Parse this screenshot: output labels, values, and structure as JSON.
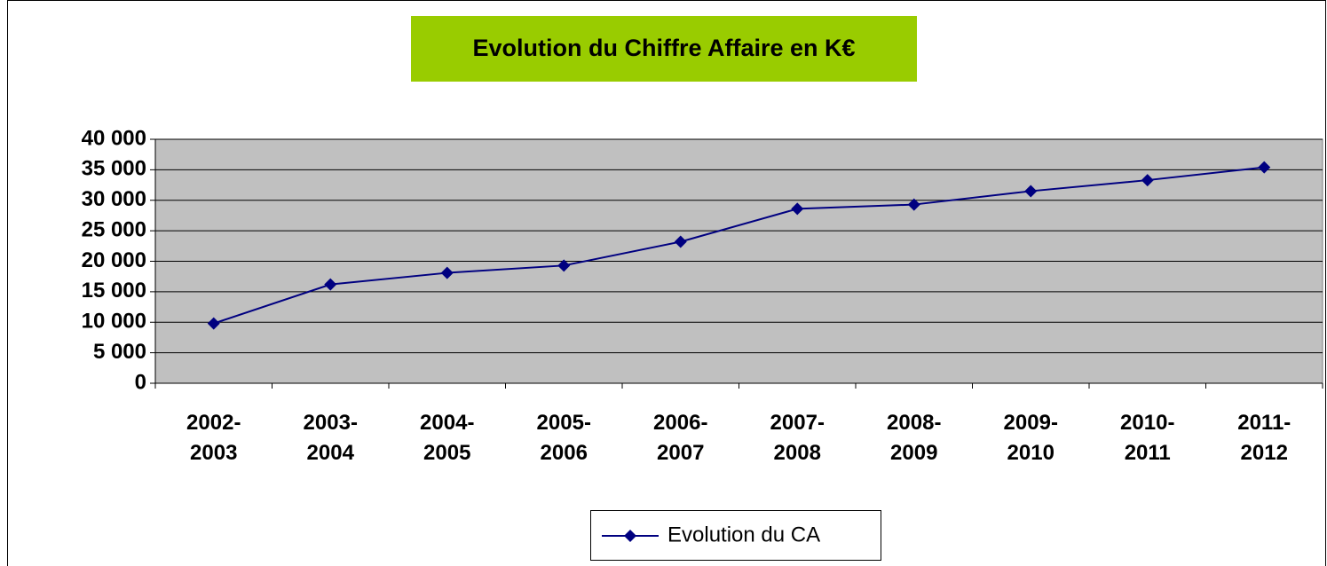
{
  "chart_data": {
    "type": "line",
    "title": "Evolution du Chiffre Affaire en K€",
    "categories": [
      "2002-2003",
      "2003-2004",
      "2004-2005",
      "2005-2006",
      "2006-2007",
      "2007-2008",
      "2008-2009",
      "2009-2010",
      "2010-2011",
      "2011-2012"
    ],
    "series": [
      {
        "name": "Evolution du CA",
        "color": "#000080",
        "values": [
          9800,
          16200,
          18100,
          19300,
          23200,
          28600,
          29300,
          31500,
          33300,
          35400
        ]
      }
    ],
    "ylim": [
      0,
      40000
    ],
    "yticks": [
      0,
      {
        "value": 5000,
        "label": "5 000"
      },
      {
        "value": 10000,
        "label": "10 000"
      },
      {
        "value": 15000,
        "label": "15 000"
      },
      {
        "value": 20000,
        "label": "20 000"
      },
      {
        "value": 25000,
        "label": "25 000"
      },
      {
        "value": 30000,
        "label": "30 000"
      },
      {
        "value": 35000,
        "label": "35 000"
      },
      {
        "value": 40000,
        "label": "40 000"
      }
    ],
    "grid": true,
    "legend": "bottom",
    "plot_background": "#c0c0c0",
    "title_background": "#99cc00"
  }
}
